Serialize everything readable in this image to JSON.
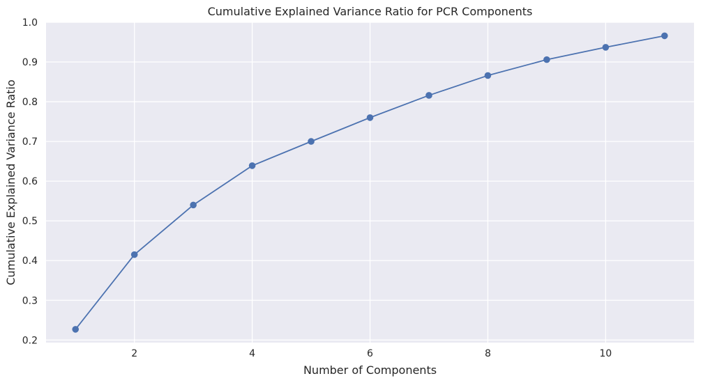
{
  "chart_data": {
    "type": "line",
    "title": "Cumulative Explained Variance Ratio for PCR Components",
    "xlabel": "Number of Components",
    "ylabel": "Cumulative Explained Variance Ratio",
    "x": [
      1,
      2,
      3,
      4,
      5,
      6,
      7,
      8,
      9,
      10,
      11
    ],
    "series": [
      {
        "values": [
          0.227,
          0.415,
          0.54,
          0.639,
          0.7,
          0.76,
          0.816,
          0.866,
          0.906,
          0.937,
          0.966
        ],
        "color": "#4c72b0",
        "marker": "circle"
      }
    ],
    "xlim": [
      0.5,
      11.5
    ],
    "ylim": [
      0.1935,
      1.0
    ],
    "xticks": [
      2,
      4,
      6,
      8,
      10
    ],
    "xtick_labels": [
      "2",
      "4",
      "6",
      "8",
      "10"
    ],
    "yticks": [
      0.2,
      0.3,
      0.4,
      0.5,
      0.6,
      0.7,
      0.8,
      0.9,
      1.0
    ],
    "ytick_labels": [
      "0.2",
      "0.3",
      "0.4",
      "0.5",
      "0.6",
      "0.7",
      "0.8",
      "0.9",
      "1.0"
    ],
    "grid": true,
    "legend": "none",
    "colors": {
      "plot_background": "#eaeaf2",
      "grid": "#ffffff",
      "line": "#4c72b0"
    }
  }
}
